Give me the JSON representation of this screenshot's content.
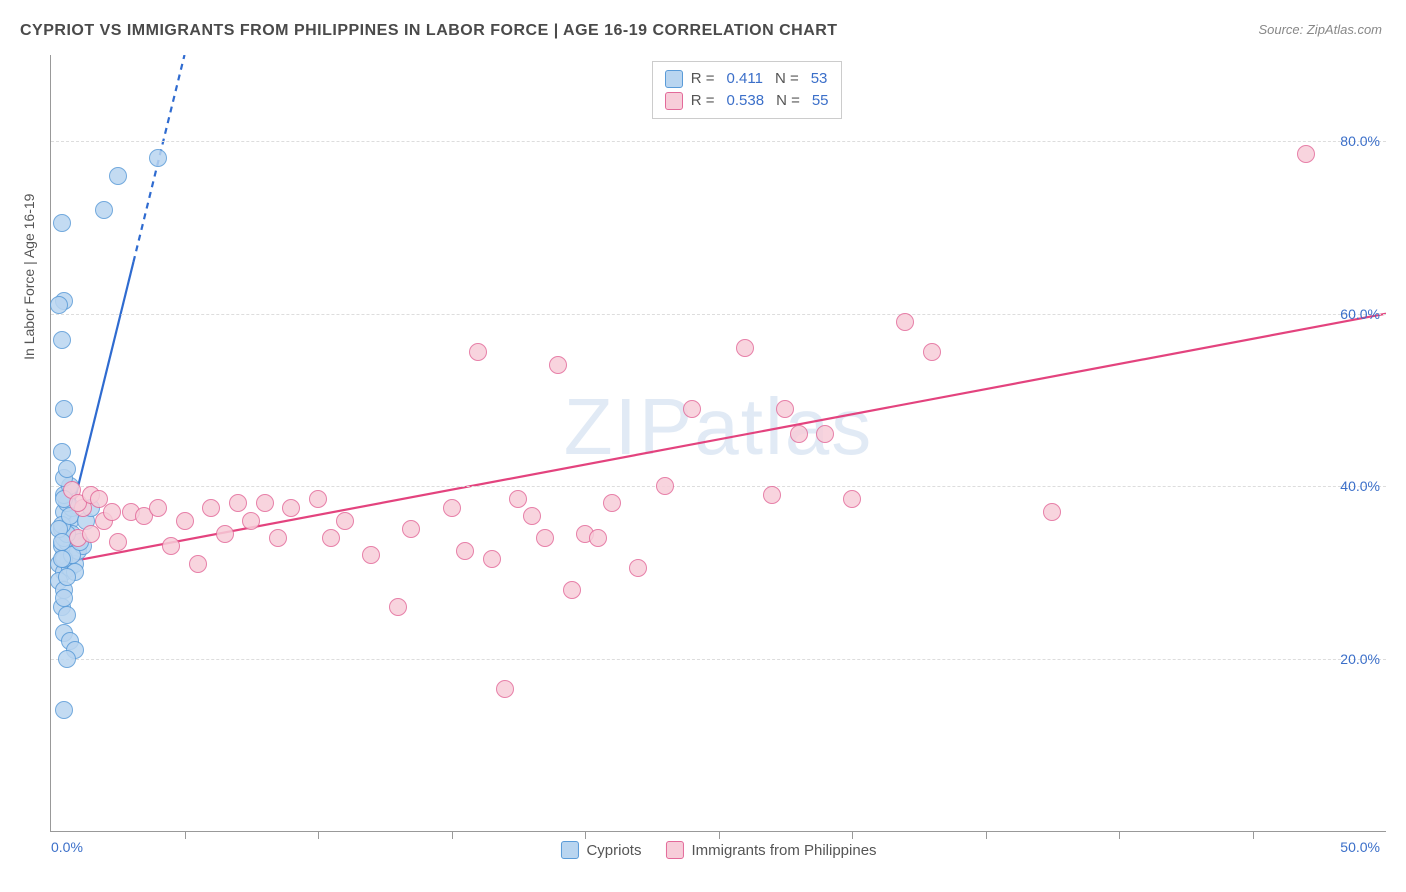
{
  "title": "CYPRIOT VS IMMIGRANTS FROM PHILIPPINES IN LABOR FORCE | AGE 16-19 CORRELATION CHART",
  "source": "Source: ZipAtlas.com",
  "watermark": "ZIPatlas",
  "chart": {
    "type": "scatter",
    "xlim": [
      0,
      50
    ],
    "ylim": [
      0,
      90
    ],
    "x_min_label": "0.0%",
    "x_max_label": "50.0%",
    "x_tick_positions": [
      5,
      10,
      15,
      20,
      25,
      30,
      35,
      40,
      45
    ],
    "y_grid": [
      {
        "value": 20,
        "label": "20.0%"
      },
      {
        "value": 40,
        "label": "40.0%"
      },
      {
        "value": 60,
        "label": "60.0%"
      },
      {
        "value": 80,
        "label": "80.0%"
      }
    ],
    "y_axis_title": "In Labor Force | Age 16-19",
    "background_color": "#ffffff",
    "grid_color": "#dddddd",
    "marker_radius": 9,
    "marker_border": 1,
    "series": [
      {
        "name": "Cypriots",
        "fill": "#b9d5f0",
        "stroke": "#5a9bd8",
        "line_color": "#2f6bd0",
        "R": "0.411",
        "N": "53",
        "trend": {
          "x1": 0.3,
          "y1": 31,
          "x2": 5.0,
          "y2": 90,
          "dash_after_y": 66
        },
        "points": [
          [
            0.3,
            31
          ],
          [
            0.5,
            30
          ],
          [
            0.5,
            32
          ],
          [
            0.4,
            33
          ],
          [
            0.6,
            33.5
          ],
          [
            0.5,
            34
          ],
          [
            0.4,
            35
          ],
          [
            0.7,
            36
          ],
          [
            0.5,
            37
          ],
          [
            0.8,
            37.5
          ],
          [
            0.6,
            38
          ],
          [
            0.5,
            39
          ],
          [
            0.7,
            40
          ],
          [
            0.5,
            41
          ],
          [
            0.6,
            42
          ],
          [
            0.4,
            44
          ],
          [
            0.5,
            49
          ],
          [
            0.3,
            29
          ],
          [
            0.5,
            28
          ],
          [
            0.7,
            30.5
          ],
          [
            0.9,
            31
          ],
          [
            1.0,
            32.5
          ],
          [
            1.2,
            33
          ],
          [
            0.8,
            34.5
          ],
          [
            0.4,
            26
          ],
          [
            0.6,
            25
          ],
          [
            0.5,
            23
          ],
          [
            0.7,
            22
          ],
          [
            0.9,
            21
          ],
          [
            0.6,
            20
          ],
          [
            0.5,
            14
          ],
          [
            0.4,
            57
          ],
          [
            0.5,
            61.5
          ],
          [
            0.3,
            61
          ],
          [
            2.0,
            72
          ],
          [
            0.4,
            70.5
          ],
          [
            2.5,
            76
          ],
          [
            4.0,
            78
          ],
          [
            0.5,
            31.5
          ],
          [
            0.8,
            32
          ],
          [
            1.1,
            33.5
          ],
          [
            0.6,
            34.5
          ],
          [
            0.4,
            35.5
          ],
          [
            0.7,
            36.5
          ],
          [
            0.5,
            38.5
          ],
          [
            0.9,
            30
          ],
          [
            1.3,
            36
          ],
          [
            1.5,
            37.5
          ],
          [
            0.4,
            31.5
          ],
          [
            0.6,
            29.5
          ],
          [
            0.5,
            27
          ],
          [
            0.3,
            35
          ],
          [
            0.4,
            33.5
          ]
        ]
      },
      {
        "name": "Immigants from Philippines",
        "label": "Immigrants from Philippines",
        "fill": "#f7cdd9",
        "stroke": "#e36a9a",
        "line_color": "#e3437e",
        "R": "0.538",
        "N": "55",
        "trend": {
          "x1": 0.3,
          "y1": 31,
          "x2": 50,
          "y2": 60
        },
        "points": [
          [
            1.0,
            34
          ],
          [
            1.5,
            34.5
          ],
          [
            0.8,
            39.5
          ],
          [
            1.2,
            37.5
          ],
          [
            1.0,
            38
          ],
          [
            1.5,
            39
          ],
          [
            2.0,
            36
          ],
          [
            2.3,
            37
          ],
          [
            2.5,
            33.5
          ],
          [
            3.0,
            37
          ],
          [
            3.5,
            36.5
          ],
          [
            4.0,
            37.5
          ],
          [
            4.5,
            33
          ],
          [
            5.0,
            36
          ],
          [
            5.5,
            31
          ],
          [
            6.0,
            37.5
          ],
          [
            6.5,
            34.5
          ],
          [
            7.0,
            38
          ],
          [
            7.5,
            36
          ],
          [
            8.0,
            38
          ],
          [
            8.5,
            34
          ],
          [
            9.0,
            37.5
          ],
          [
            10.0,
            38.5
          ],
          [
            10.5,
            34
          ],
          [
            11.0,
            36
          ],
          [
            12.0,
            32
          ],
          [
            13.0,
            26
          ],
          [
            13.5,
            35
          ],
          [
            15.0,
            37.5
          ],
          [
            15.5,
            32.5
          ],
          [
            16.0,
            55.5
          ],
          [
            16.5,
            31.5
          ],
          [
            17.5,
            38.5
          ],
          [
            18.0,
            36.5
          ],
          [
            18.5,
            34
          ],
          [
            17.0,
            16.5
          ],
          [
            19.0,
            54
          ],
          [
            19.5,
            28
          ],
          [
            20.0,
            34.5
          ],
          [
            20.5,
            34
          ],
          [
            21.0,
            38
          ],
          [
            22.0,
            30.5
          ],
          [
            23.0,
            40
          ],
          [
            24.0,
            49
          ],
          [
            26.0,
            56
          ],
          [
            27.0,
            39
          ],
          [
            27.5,
            49
          ],
          [
            28.0,
            46
          ],
          [
            29.0,
            46
          ],
          [
            30.0,
            38.5
          ],
          [
            32.0,
            59
          ],
          [
            33.0,
            55.5
          ],
          [
            37.5,
            37
          ],
          [
            47.0,
            78.5
          ],
          [
            1.8,
            38.5
          ]
        ]
      }
    ]
  },
  "stats_box": {
    "R_label": "R  =",
    "N_label": "N  ="
  },
  "legend": {
    "series1": "Cypriots",
    "series2": "Immigrants from Philippines"
  }
}
